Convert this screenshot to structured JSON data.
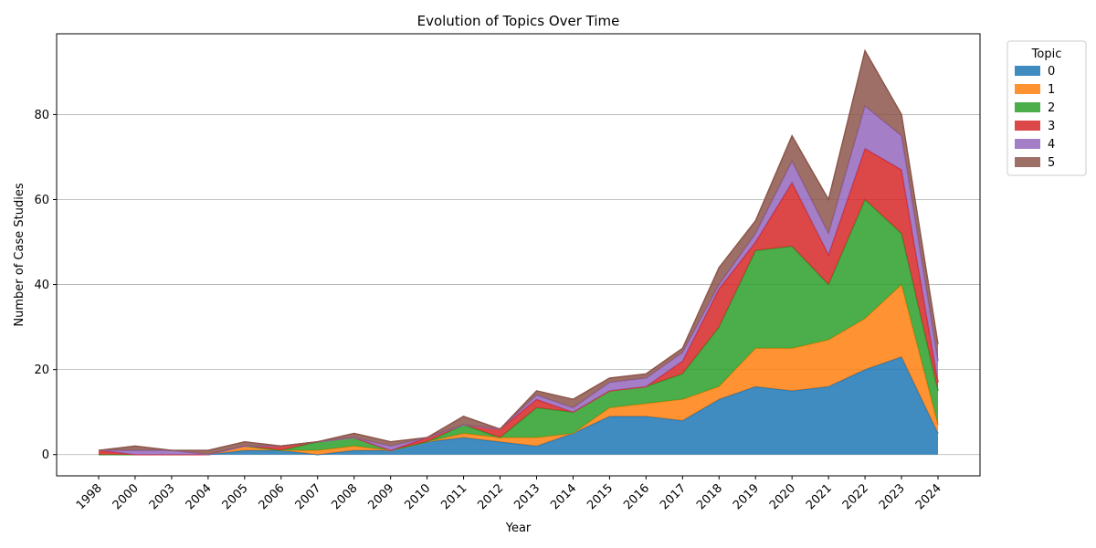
{
  "chart_data": {
    "type": "area",
    "stacked": true,
    "title": "Evolution of Topics Over Time",
    "xlabel": "Year",
    "ylabel": "Number of Case Studies",
    "ylim": [
      -5,
      99
    ],
    "yticks": [
      0,
      20,
      40,
      60,
      80
    ],
    "grid": "horizontal",
    "legend": {
      "title": "Topic",
      "placement": "outside-top-right"
    },
    "categories": [
      "1998",
      "2000",
      "2003",
      "2004",
      "2005",
      "2006",
      "2007",
      "2008",
      "2009",
      "2010",
      "2011",
      "2012",
      "2013",
      "2014",
      "2015",
      "2016",
      "2017",
      "2018",
      "2019",
      "2020",
      "2021",
      "2022",
      "2023",
      "2024"
    ],
    "series": [
      {
        "name": "0",
        "color": "#1f77b4",
        "values": [
          0,
          0,
          0,
          0,
          1,
          1,
          0,
          1,
          1,
          3,
          4,
          3,
          2,
          5,
          9,
          9,
          8,
          13,
          16,
          15,
          16,
          20,
          23,
          5
        ]
      },
      {
        "name": "1",
        "color": "#ff7f0e",
        "values": [
          0,
          0,
          0,
          0,
          1,
          0,
          1,
          1,
          0,
          0,
          1,
          1,
          2,
          0,
          2,
          3,
          5,
          3,
          9,
          10,
          11,
          12,
          17,
          2
        ]
      },
      {
        "name": "2",
        "color": "#2ca02c",
        "values": [
          0,
          0,
          0,
          0,
          0,
          0,
          2,
          2,
          0,
          0,
          2,
          0,
          7,
          5,
          4,
          4,
          6,
          14,
          23,
          24,
          13,
          28,
          12,
          8
        ]
      },
      {
        "name": "3",
        "color": "#d62728",
        "values": [
          1,
          0,
          0,
          0,
          0,
          1,
          0,
          0,
          0,
          1,
          0,
          2,
          2,
          0,
          0,
          0,
          3,
          9,
          2,
          15,
          7,
          12,
          15,
          2
        ]
      },
      {
        "name": "4",
        "color": "#9467bd",
        "values": [
          0,
          1,
          1,
          0,
          0,
          0,
          0,
          0,
          1,
          0,
          0,
          0,
          1,
          1,
          2,
          2,
          2,
          1,
          2,
          5,
          5,
          10,
          8,
          5
        ]
      },
      {
        "name": "5",
        "color": "#8c564b",
        "values": [
          0,
          1,
          0,
          1,
          1,
          0,
          0,
          1,
          1,
          0,
          2,
          0,
          1,
          2,
          1,
          1,
          1,
          4,
          3,
          6,
          8,
          13,
          5,
          4
        ]
      }
    ]
  }
}
